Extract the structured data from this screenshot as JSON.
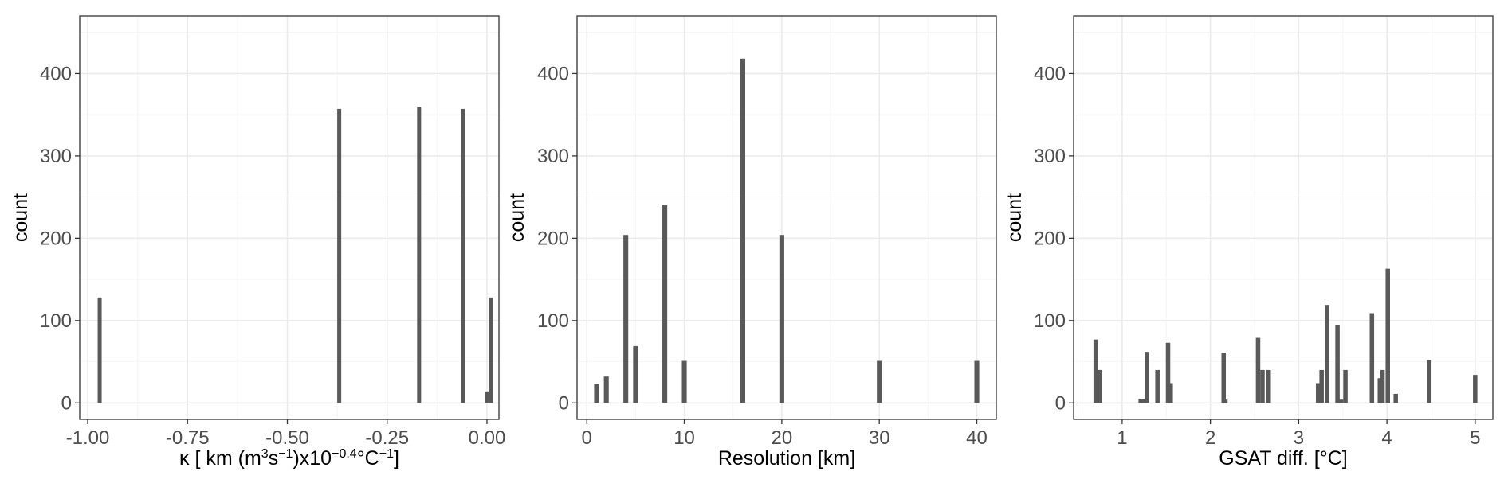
{
  "chart_data": [
    {
      "type": "bar",
      "subtype": "histogram",
      "xlabel": {
        "prefix": "κ [ km (m",
        "sup1": "3",
        "mid1": "s",
        "sup2": "−1",
        "mid2": ")x10",
        "sup3": "−0.4",
        "mid3": "°C",
        "sup4": "−1",
        "suffix": "]"
      },
      "ylabel": "count",
      "xlim": [
        -1.02,
        0.03
      ],
      "ylim": [
        -20,
        470
      ],
      "xticks": [
        -1.0,
        -0.75,
        -0.5,
        -0.25,
        0.0
      ],
      "xtick_labels": [
        "-1.00",
        "-0.75",
        "-0.50",
        "-0.25",
        "0.00"
      ],
      "yticks": [
        0,
        100,
        200,
        300,
        400
      ],
      "bar_width": 0.01,
      "x": [
        -0.97,
        -0.37,
        -0.17,
        -0.06,
        0.0,
        0.01
      ],
      "values": [
        128,
        357,
        359,
        357,
        14,
        128
      ],
      "grid": true
    },
    {
      "type": "bar",
      "subtype": "histogram",
      "xlabel": "Resolution [km]",
      "ylabel": "count",
      "xlim": [
        -1,
        42
      ],
      "ylim": [
        -20,
        470
      ],
      "xticks": [
        0,
        10,
        20,
        30,
        40
      ],
      "xtick_labels": [
        "0",
        "10",
        "20",
        "30",
        "40"
      ],
      "yticks": [
        0,
        100,
        200,
        300,
        400
      ],
      "bar_width": 0.5,
      "x": [
        1,
        2,
        4,
        5,
        8,
        10,
        16,
        20,
        30,
        40
      ],
      "values": [
        23,
        32,
        204,
        69,
        240,
        51,
        418,
        204,
        51,
        51
      ],
      "grid": true
    },
    {
      "type": "bar",
      "subtype": "histogram",
      "xlabel": "GSAT diff. [°C]",
      "ylabel": "count",
      "xlim": [
        0.45,
        5.2
      ],
      "ylim": [
        -20,
        470
      ],
      "xticks": [
        1,
        2,
        3,
        4,
        5
      ],
      "xtick_labels": [
        "1",
        "2",
        "3",
        "4",
        "5"
      ],
      "yticks": [
        0,
        100,
        200,
        300,
        400
      ],
      "bar_width": 0.05,
      "x": [
        0.7,
        0.75,
        1.21,
        1.24,
        1.28,
        1.4,
        1.52,
        1.55,
        2.15,
        2.17,
        2.54,
        2.59,
        2.66,
        3.22,
        3.26,
        3.32,
        3.44,
        3.48,
        3.53,
        3.83,
        3.92,
        3.95,
        4.01,
        4.1,
        4.48,
        5.0
      ],
      "values": [
        77,
        40,
        5,
        5,
        62,
        40,
        73,
        24,
        61,
        4,
        79,
        40,
        40,
        24,
        40,
        119,
        95,
        4,
        40,
        109,
        30,
        40,
        163,
        11,
        52,
        34
      ],
      "grid": true
    }
  ]
}
